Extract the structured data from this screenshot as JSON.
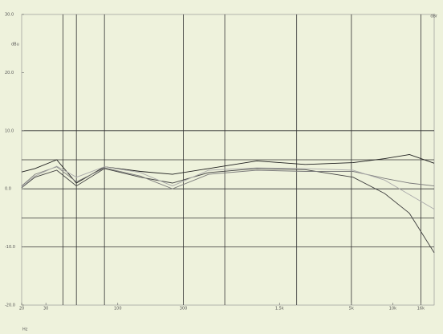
{
  "chart_data": {
    "type": "line",
    "ylabel": "dBu",
    "xlabel": "Hz",
    "annotation": "dBr",
    "log_x": true,
    "x": [
      20,
      25,
      36,
      50,
      80,
      146,
      250,
      458,
      1026,
      2300,
      5140,
      8730,
      13200,
      20000
    ],
    "series": [
      {
        "color": "#1e1e1e",
        "values": [
          2.9,
          3.5,
          5.0,
          1.0,
          3.8,
          3.0,
          2.5,
          3.5,
          4.8,
          4.2,
          4.5,
          5.2,
          5.9,
          4.4
        ]
      },
      {
        "color": "#404040",
        "values": [
          0.2,
          2.0,
          3.2,
          0.5,
          3.5,
          2.0,
          1.0,
          2.8,
          3.5,
          3.3,
          2.0,
          -0.8,
          -4.2,
          -11.0
        ]
      },
      {
        "color": "#7a7a7a",
        "values": [
          0.5,
          2.5,
          3.8,
          1.2,
          3.6,
          2.2,
          0.0,
          2.5,
          3.2,
          3.0,
          3.0,
          1.8,
          1.0,
          0.5
        ]
      },
      {
        "color": "#ababab",
        "values": [
          0.3,
          2.2,
          3.9,
          2.0,
          3.8,
          2.8,
          0.5,
          3.2,
          3.6,
          3.5,
          3.2,
          1.5,
          -1.0,
          -3.5
        ]
      }
    ],
    "xlim": [
      20,
      20000
    ],
    "xticks": [
      20,
      30,
      100,
      300,
      {
        "value": 1500,
        "label": "1.5k"
      },
      {
        "value": 5000,
        "label": "5k"
      },
      {
        "value": 10000,
        "label": "10k"
      },
      {
        "value": 16000,
        "label": "16k"
      }
    ],
    "xgrid": [
      40,
      50,
      80,
      300,
      600,
      2000,
      5000,
      16000
    ],
    "ylim": [
      -20,
      30
    ],
    "yticks": [
      {
        "value": -20,
        "label": "-20.0"
      },
      {
        "value": -10,
        "label": "-10.0"
      },
      {
        "value": 0,
        "label": "0.0"
      },
      {
        "value": 10,
        "label": "10.0"
      },
      {
        "value": 20,
        "label": "20.0"
      },
      {
        "value": 30,
        "label": "30.0"
      }
    ],
    "ygrid": [
      -10,
      -5,
      0,
      5,
      10
    ]
  }
}
